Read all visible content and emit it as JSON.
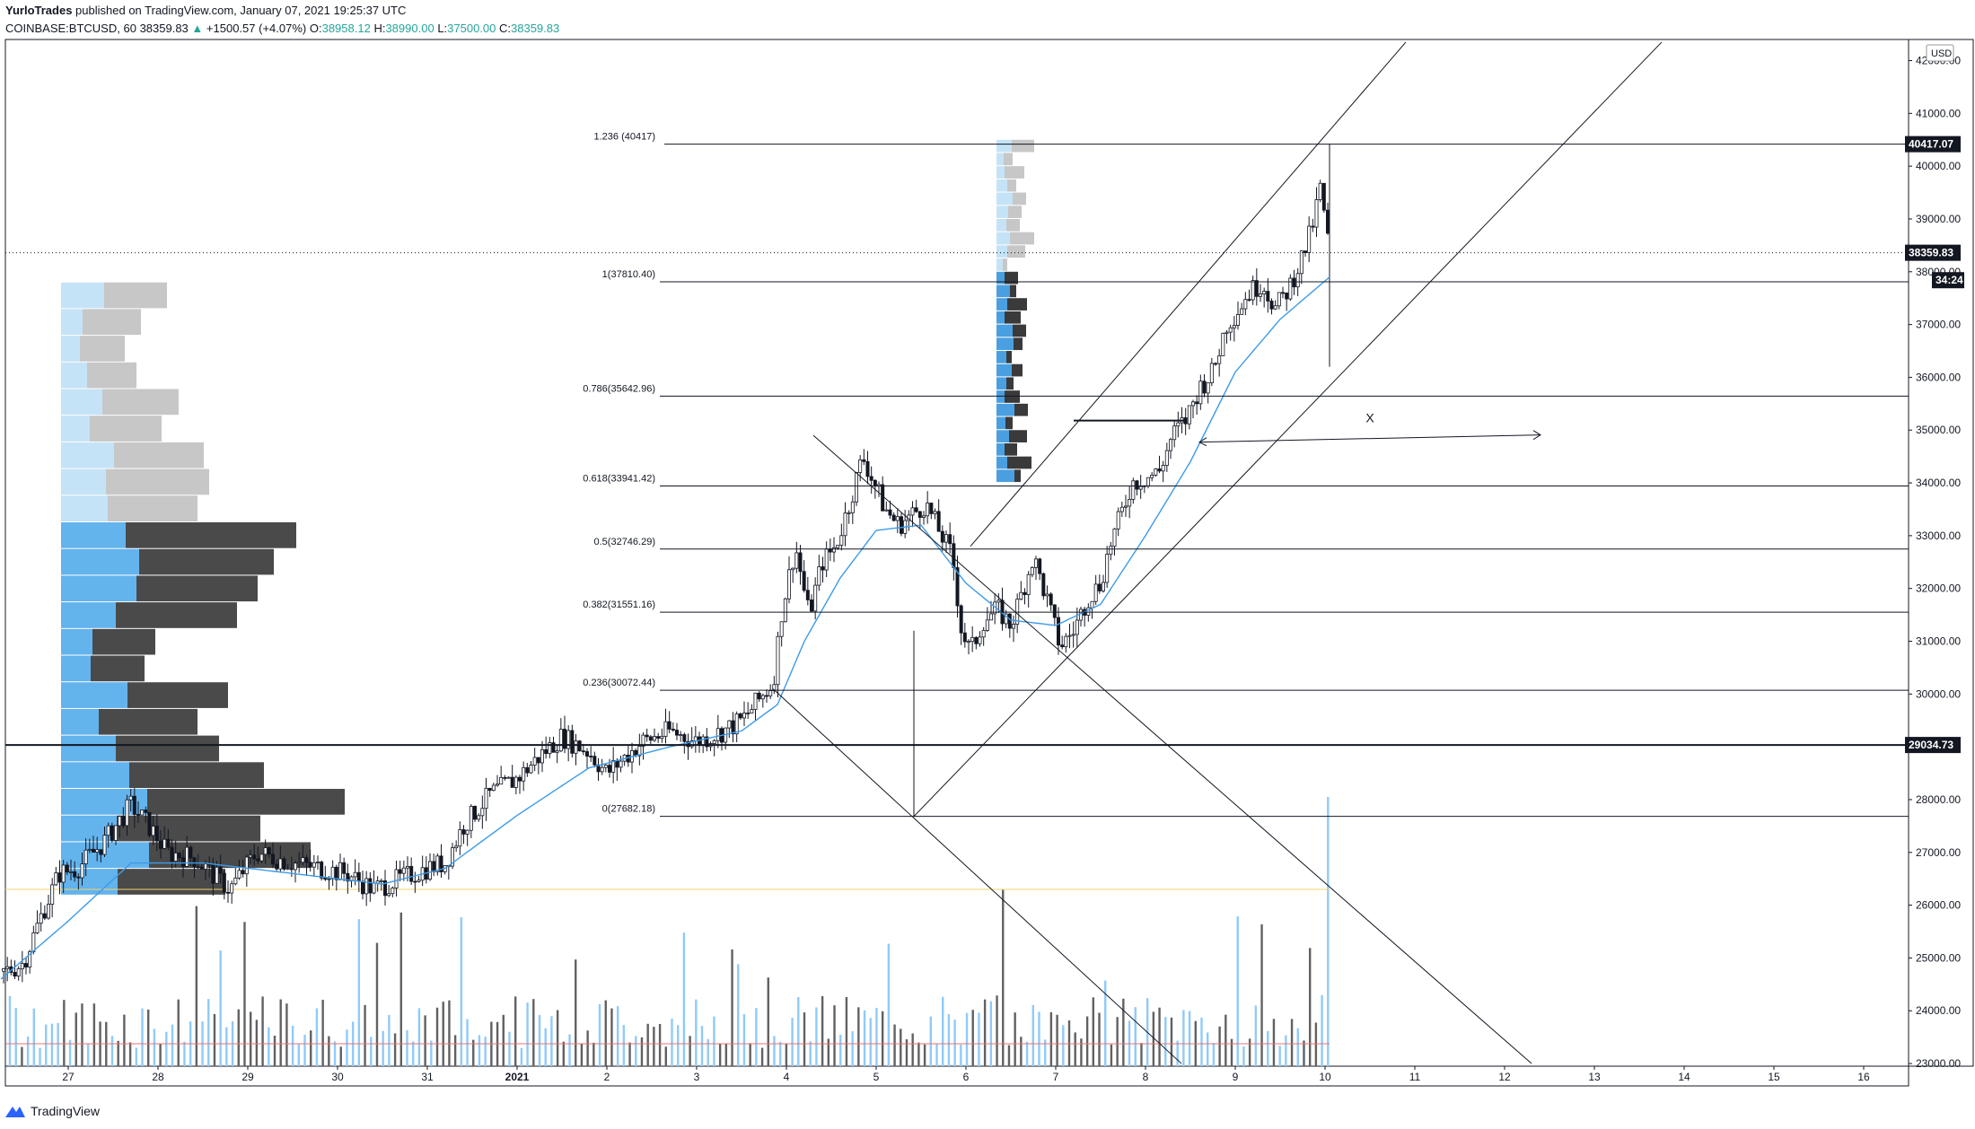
{
  "header": {
    "user": "YurloTrades",
    "published": "published on TradingView.com, January 07, 2021 19:25:37 UTC",
    "symbol": "COINBASE:BTCUSD, 60",
    "last": "38359.83",
    "change": "+1500.57 (+4.07%)",
    "o_label": "O:",
    "o": "38958.12",
    "h_label": "H:",
    "h": "38990.00",
    "l_label": "L:",
    "l": "37500.00",
    "c_label": "C:",
    "c": "38359.83"
  },
  "footer": {
    "brand": "TradingView"
  },
  "chart_data": {
    "type": "candlestick",
    "currency": "USD",
    "y_axis": {
      "ticks": [
        23000,
        24000,
        25000,
        26000,
        27000,
        28000,
        29000,
        30000,
        31000,
        32000,
        33000,
        34000,
        35000,
        36000,
        37000,
        38000,
        39000,
        40000,
        41000,
        42000
      ],
      "tick_labels": [
        "23000.00",
        "24000.00",
        "25000.00",
        "26000.00",
        "27000.00",
        "28000.00",
        "29000.00",
        "30000.00",
        "31000.00",
        "32000.00",
        "33000.00",
        "34000.00",
        "35000.00",
        "36000.00",
        "37000.00",
        "38000.00",
        "39000.00",
        "40000.00",
        "41000.00",
        "42000.00"
      ],
      "range": [
        22950,
        42400
      ]
    },
    "x_axis": {
      "labels": [
        "27",
        "28",
        "29",
        "30",
        "31",
        "2021",
        "2",
        "3",
        "4",
        "5",
        "6",
        "7",
        "8",
        "9",
        "10",
        "11",
        "12",
        "13",
        "14",
        "15",
        "16"
      ],
      "range_days": [
        -5.7,
        15.5
      ]
    },
    "price_badges": [
      {
        "value": 40417.07,
        "label": "40417.07",
        "color": "#131722"
      },
      {
        "value": 38359.83,
        "label": "38359.83",
        "color": "#131722"
      },
      {
        "value": 37840,
        "label": "34:24",
        "color": "#131722"
      },
      {
        "value": 29034.73,
        "label": "29034.73",
        "color": "#131722"
      }
    ],
    "fib_levels": [
      {
        "ratio": "1.236",
        "label": "1.236 (40417)",
        "price": 40417
      },
      {
        "ratio": "1",
        "label": "1(37810.40)",
        "price": 37810.4
      },
      {
        "ratio": "0.786",
        "label": "0.786(35642.96)",
        "price": 35642.96
      },
      {
        "ratio": "0.618",
        "label": "0.618(33941.42)",
        "price": 33941.42
      },
      {
        "ratio": "0.5",
        "label": "0.5(32746.29)",
        "price": 32746.29
      },
      {
        "ratio": "0.382",
        "label": "0.382(31551.16)",
        "price": 31551.16
      },
      {
        "ratio": "0.236",
        "label": "0.236(30072.44)",
        "price": 30072.44
      },
      {
        "ratio": "0",
        "label": "0(27682.18)",
        "price": 27682.18
      }
    ],
    "horizontal_line": {
      "price": 29034.73
    },
    "annotation_text": "X",
    "arrow": {
      "from_day": 7.6,
      "to_day": 11.4,
      "price": 34840
    },
    "candles_hourly_close_keypoints": [
      [
        -5.75,
        24700
      ],
      [
        -5.5,
        24900
      ],
      [
        -5.3,
        25800
      ],
      [
        -5.1,
        26600
      ],
      [
        -4.9,
        26700
      ],
      [
        -4.6,
        27200
      ],
      [
        -4.3,
        27900
      ],
      [
        -4.1,
        27500
      ],
      [
        -3.9,
        27000
      ],
      [
        -3.6,
        26900
      ],
      [
        -3.2,
        26300
      ],
      [
        -2.9,
        27000
      ],
      [
        -2.5,
        26800
      ],
      [
        -2.2,
        26700
      ],
      [
        -1.9,
        26600
      ],
      [
        -1.6,
        26300
      ],
      [
        -1.3,
        26500
      ],
      [
        -1.0,
        26700
      ],
      [
        -0.8,
        26800
      ],
      [
        -0.6,
        27500
      ],
      [
        -0.3,
        28100
      ],
      [
        0.0,
        28400
      ],
      [
        0.3,
        28900
      ],
      [
        0.5,
        29200
      ],
      [
        0.8,
        28900
      ],
      [
        1.0,
        28500
      ],
      [
        1.2,
        28800
      ],
      [
        1.4,
        29100
      ],
      [
        1.7,
        29300
      ],
      [
        2.0,
        29100
      ],
      [
        2.3,
        29300
      ],
      [
        2.5,
        29500
      ],
      [
        2.7,
        29900
      ],
      [
        2.85,
        30200
      ],
      [
        2.95,
        31600
      ],
      [
        3.1,
        32800
      ],
      [
        3.25,
        31500
      ],
      [
        3.4,
        32500
      ],
      [
        3.55,
        32800
      ],
      [
        3.7,
        33600
      ],
      [
        3.85,
        34500
      ],
      [
        4.0,
        33900
      ],
      [
        4.1,
        33500
      ],
      [
        4.25,
        33200
      ],
      [
        4.4,
        33400
      ],
      [
        4.55,
        33600
      ],
      [
        4.7,
        33100
      ],
      [
        4.85,
        32600
      ],
      [
        4.95,
        31200
      ],
      [
        5.05,
        30800
      ],
      [
        5.2,
        31400
      ],
      [
        5.35,
        31600
      ],
      [
        5.5,
        31300
      ],
      [
        5.6,
        31800
      ],
      [
        5.75,
        32600
      ],
      [
        5.9,
        31800
      ],
      [
        6.05,
        30900
      ],
      [
        6.2,
        31200
      ],
      [
        6.35,
        31800
      ],
      [
        6.5,
        32100
      ],
      [
        6.6,
        32800
      ],
      [
        6.75,
        33500
      ],
      [
        6.85,
        34000
      ],
      [
        7.0,
        34100
      ],
      [
        7.15,
        34200
      ],
      [
        7.3,
        34900
      ],
      [
        7.45,
        35200
      ],
      [
        7.6,
        35800
      ],
      [
        7.75,
        36100
      ],
      [
        7.9,
        37000
      ],
      [
        8.0,
        37200
      ],
      [
        8.15,
        37600
      ],
      [
        8.3,
        37800
      ],
      [
        8.45,
        37300
      ],
      [
        8.6,
        37700
      ],
      [
        8.75,
        38300
      ],
      [
        8.85,
        38800
      ],
      [
        8.95,
        39600
      ],
      [
        9.05,
        38360
      ]
    ],
    "ema_keypoints": [
      [
        -5.75,
        24600
      ],
      [
        -5.0,
        25700
      ],
      [
        -4.3,
        26800
      ],
      [
        -3.5,
        26800
      ],
      [
        -2.5,
        26600
      ],
      [
        -1.5,
        26400
      ],
      [
        -0.8,
        26700
      ],
      [
        0.0,
        27700
      ],
      [
        0.8,
        28600
      ],
      [
        1.7,
        29000
      ],
      [
        2.5,
        29300
      ],
      [
        2.9,
        29800
      ],
      [
        3.2,
        31000
      ],
      [
        3.6,
        32200
      ],
      [
        4.0,
        33100
      ],
      [
        4.5,
        33200
      ],
      [
        5.0,
        32100
      ],
      [
        5.5,
        31400
      ],
      [
        6.0,
        31300
      ],
      [
        6.5,
        31700
      ],
      [
        7.0,
        33000
      ],
      [
        7.5,
        34400
      ],
      [
        8.0,
        36100
      ],
      [
        8.5,
        37100
      ],
      [
        9.05,
        37900
      ]
    ],
    "volume_profile_left": {
      "price_start": 26200,
      "row_height": 505,
      "rows_up": [
        120,
        180,
        160,
        220,
        150,
        115,
        110,
        112,
        60,
        70,
        135,
        135,
        150,
        190,
        100,
        115,
        100,
        80,
        85,
        55,
        50,
        65,
        70
      ]
    },
    "volume_bars_count": 220,
    "trend_channel_up": "rising channel from Jan 4 low to above 40000",
    "trend_channel_down": "falling channel from Jan 3 high"
  }
}
